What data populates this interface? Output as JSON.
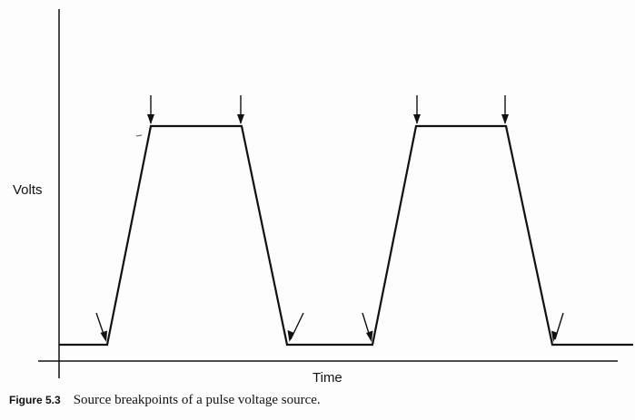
{
  "diagram": {
    "ylabel": "Volts",
    "xlabel": "Time",
    "caption": {
      "label": "Figure 5.3",
      "text": "Source breakpoints of a pulse voltage source."
    },
    "waveform": {
      "shape": "pulse",
      "periods": 2,
      "segments": [
        "low",
        "rise",
        "high",
        "fall",
        "low",
        "rise",
        "high",
        "fall",
        "low"
      ]
    },
    "breakpoints": {
      "count": 8,
      "marker": "down-arrow-icon"
    },
    "colors": {
      "ink": "#111111",
      "background": "#ffffff"
    }
  }
}
